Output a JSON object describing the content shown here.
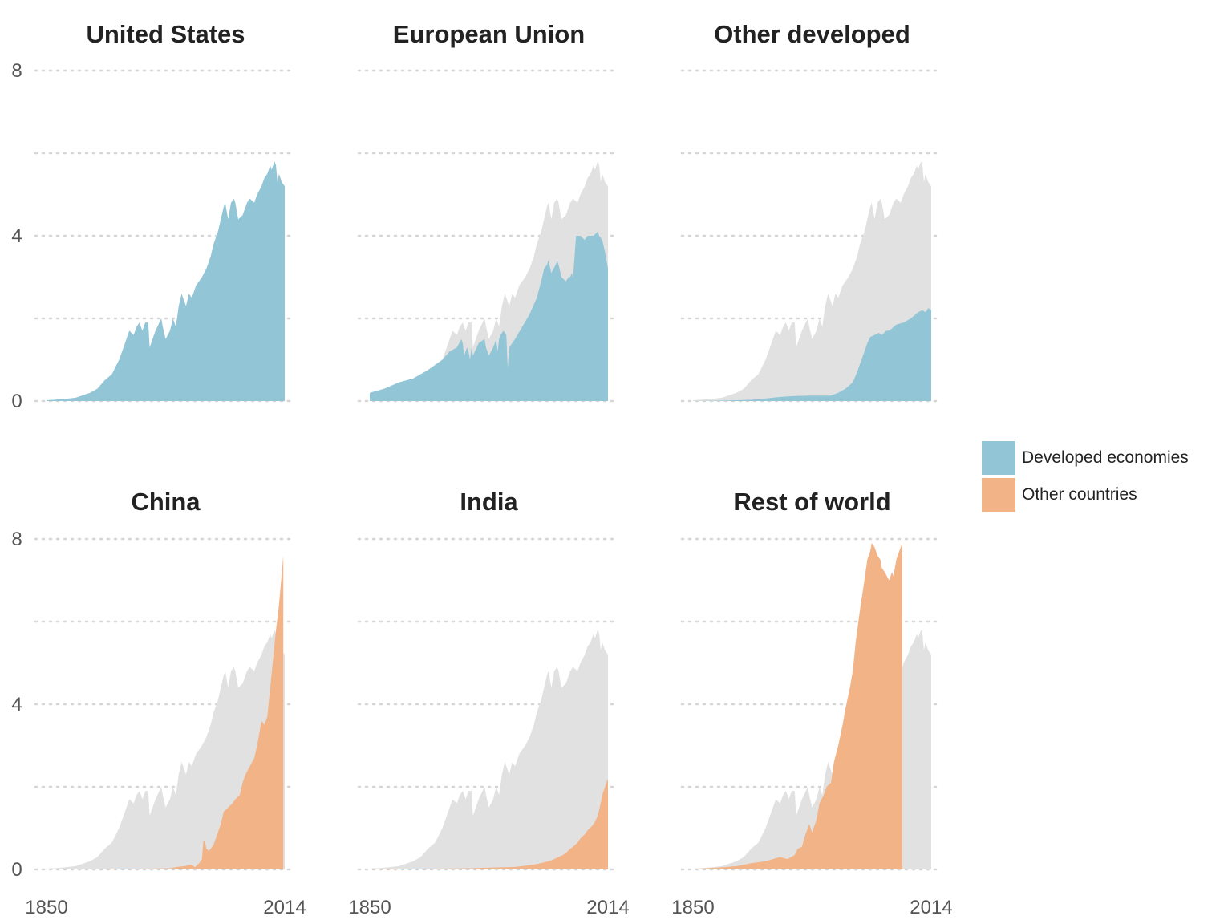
{
  "chart_data": {
    "type": "area",
    "x_range": [
      1850,
      2014
    ],
    "y_range": [
      0,
      8
    ],
    "y_ticks": [
      "0",
      "4",
      "8"
    ],
    "x_ticks": [
      "1850",
      "2014"
    ],
    "grid": "dotted horizontal",
    "legend_placement": "right",
    "legend": [
      {
        "label": "Developed economies",
        "color": "#92c5d5"
      },
      {
        "label": "Other countries",
        "color": "#f2b387"
      }
    ],
    "background_series_color": "#e1e1e1",
    "background_series": {
      "x": [
        1850,
        1860,
        1870,
        1880,
        1885,
        1890,
        1895,
        1900,
        1903,
        1905,
        1907,
        1910,
        1912,
        1914,
        1916,
        1918,
        1920,
        1921,
        1923,
        1925,
        1929,
        1930,
        1932,
        1935,
        1937,
        1939,
        1941,
        1943,
        1945,
        1946,
        1948,
        1950,
        1953,
        1955,
        1957,
        1960,
        1963,
        1965,
        1968,
        1970,
        1972,
        1973,
        1975,
        1977,
        1979,
        1980,
        1982,
        1985,
        1988,
        1990,
        1993,
        1995,
        1998,
        2000,
        2002,
        2004,
        2005,
        2007,
        2008,
        2009,
        2010,
        2012,
        2014
      ],
      "values": [
        0.02,
        0.04,
        0.08,
        0.2,
        0.3,
        0.5,
        0.65,
        1.0,
        1.3,
        1.5,
        1.7,
        1.6,
        1.8,
        1.9,
        1.7,
        1.9,
        1.9,
        1.3,
        1.5,
        1.7,
        2.0,
        1.8,
        1.5,
        1.7,
        2.0,
        1.8,
        2.3,
        2.6,
        2.4,
        2.3,
        2.6,
        2.5,
        2.8,
        2.9,
        3.0,
        3.2,
        3.5,
        3.8,
        4.1,
        4.4,
        4.7,
        4.8,
        4.4,
        4.8,
        4.9,
        4.8,
        4.4,
        4.5,
        4.8,
        4.9,
        4.8,
        5.0,
        5.2,
        5.4,
        5.5,
        5.7,
        5.6,
        5.8,
        5.7,
        5.3,
        5.5,
        5.3,
        5.2
      ]
    },
    "panels": [
      {
        "title": "United States",
        "group": "Developed economies",
        "x": [
          1850,
          1860,
          1870,
          1880,
          1885,
          1890,
          1895,
          1900,
          1903,
          1905,
          1907,
          1910,
          1912,
          1914,
          1916,
          1918,
          1920,
          1921,
          1923,
          1925,
          1929,
          1930,
          1932,
          1935,
          1937,
          1939,
          1941,
          1943,
          1945,
          1946,
          1948,
          1950,
          1953,
          1955,
          1957,
          1960,
          1963,
          1965,
          1968,
          1970,
          1972,
          1973,
          1975,
          1977,
          1979,
          1980,
          1982,
          1985,
          1988,
          1990,
          1993,
          1995,
          1998,
          2000,
          2002,
          2004,
          2005,
          2007,
          2008,
          2009,
          2010,
          2012,
          2014
        ],
        "values": [
          0.02,
          0.04,
          0.08,
          0.2,
          0.3,
          0.5,
          0.65,
          1.0,
          1.3,
          1.5,
          1.7,
          1.6,
          1.8,
          1.9,
          1.7,
          1.9,
          1.9,
          1.3,
          1.5,
          1.7,
          2.0,
          1.8,
          1.5,
          1.7,
          2.0,
          1.8,
          2.3,
          2.6,
          2.4,
          2.3,
          2.6,
          2.5,
          2.8,
          2.9,
          3.0,
          3.2,
          3.5,
          3.8,
          4.1,
          4.4,
          4.7,
          4.8,
          4.4,
          4.8,
          4.9,
          4.8,
          4.4,
          4.5,
          4.8,
          4.9,
          4.8,
          5.0,
          5.2,
          5.4,
          5.5,
          5.7,
          5.6,
          5.8,
          5.7,
          5.3,
          5.5,
          5.3,
          5.2
        ]
      },
      {
        "title": "European Union",
        "group": "Developed economies",
        "x": [
          1850,
          1860,
          1870,
          1880,
          1890,
          1900,
          1905,
          1910,
          1913,
          1914,
          1915,
          1917,
          1918,
          1919,
          1920,
          1921,
          1925,
          1929,
          1930,
          1932,
          1935,
          1937,
          1938,
          1939,
          1940,
          1942,
          1944,
          1945,
          1946,
          1948,
          1950,
          1955,
          1960,
          1965,
          1968,
          1970,
          1972,
          1973,
          1975,
          1978,
          1979,
          1980,
          1982,
          1985,
          1987,
          1988,
          1989,
          1990,
          1992,
          1995,
          1998,
          2000,
          2004,
          2007,
          2008,
          2010,
          2012,
          2014
        ],
        "values": [
          0.2,
          0.3,
          0.45,
          0.55,
          0.75,
          1.0,
          1.2,
          1.3,
          1.5,
          1.4,
          1.1,
          1.3,
          1.2,
          1.0,
          1.3,
          1.1,
          1.4,
          1.5,
          1.3,
          1.1,
          1.3,
          1.5,
          1.2,
          1.5,
          1.6,
          1.7,
          1.6,
          0.8,
          1.3,
          1.4,
          1.5,
          1.8,
          2.1,
          2.5,
          2.9,
          3.2,
          3.3,
          3.4,
          3.1,
          3.3,
          3.4,
          3.3,
          3.0,
          2.9,
          3.0,
          3.0,
          3.1,
          3.0,
          4.0,
          4.0,
          3.9,
          4.0,
          4.0,
          4.1,
          4.0,
          3.9,
          3.6,
          3.2
        ]
      },
      {
        "title": "Other developed",
        "group": "Developed economies",
        "x": [
          1850,
          1870,
          1890,
          1900,
          1910,
          1920,
          1930,
          1940,
          1945,
          1950,
          1955,
          1960,
          1963,
          1965,
          1967,
          1970,
          1972,
          1975,
          1978,
          1980,
          1983,
          1985,
          1990,
          1995,
          2000,
          2005,
          2008,
          2010,
          2012,
          2014
        ],
        "values": [
          0.0,
          0.01,
          0.03,
          0.06,
          0.1,
          0.12,
          0.13,
          0.13,
          0.13,
          0.2,
          0.3,
          0.45,
          0.7,
          0.9,
          1.1,
          1.4,
          1.55,
          1.6,
          1.65,
          1.6,
          1.7,
          1.7,
          1.85,
          1.9,
          2.0,
          2.15,
          2.2,
          2.15,
          2.25,
          2.2
        ]
      },
      {
        "title": "China",
        "group": "Other countries",
        "x": [
          1850,
          1890,
          1900,
          1920,
          1935,
          1937,
          1940,
          1945,
          1950,
          1952,
          1955,
          1957,
          1958,
          1959,
          1960,
          1962,
          1965,
          1968,
          1970,
          1972,
          1975,
          1978,
          1980,
          1983,
          1985,
          1987,
          1990,
          1993,
          1995,
          1997,
          1998,
          2000,
          2002,
          2004,
          2006,
          2008,
          2010,
          2012,
          2013
        ],
        "values": [
          0.0,
          0.0,
          0.01,
          0.02,
          0.03,
          0.04,
          0.06,
          0.08,
          0.12,
          0.05,
          0.15,
          0.25,
          0.7,
          0.7,
          0.5,
          0.45,
          0.6,
          0.9,
          1.1,
          1.4,
          1.5,
          1.6,
          1.7,
          1.8,
          2.1,
          2.3,
          2.5,
          2.7,
          3.0,
          3.4,
          3.6,
          3.5,
          3.7,
          4.4,
          5.1,
          5.8,
          6.4,
          7.2,
          7.6
        ]
      },
      {
        "title": "India",
        "group": "Other countries",
        "x": [
          1850,
          1880,
          1900,
          1920,
          1940,
          1950,
          1960,
          1965,
          1970,
          1975,
          1980,
          1983,
          1985,
          1988,
          1990,
          1993,
          1995,
          1998,
          2000,
          2003,
          2005,
          2007,
          2008,
          2009,
          2010,
          2012,
          2014
        ],
        "values": [
          0.0,
          0.01,
          0.02,
          0.03,
          0.05,
          0.06,
          0.1,
          0.13,
          0.17,
          0.22,
          0.3,
          0.35,
          0.4,
          0.5,
          0.55,
          0.65,
          0.75,
          0.85,
          0.95,
          1.05,
          1.15,
          1.3,
          1.45,
          1.6,
          1.8,
          2.0,
          2.2
        ]
      },
      {
        "title": "Rest of world",
        "group": "Other countries",
        "x": [
          1850,
          1860,
          1870,
          1880,
          1890,
          1900,
          1905,
          1910,
          1915,
          1920,
          1922,
          1925,
          1927,
          1929,
          1930,
          1932,
          1935,
          1937,
          1940,
          1942,
          1945,
          1947,
          1950,
          1953,
          1955,
          1958,
          1960,
          1962,
          1965,
          1968,
          1970,
          1972,
          1973,
          1975,
          1977,
          1979,
          1980,
          1982,
          1985,
          1987,
          1988,
          1990,
          1993,
          1994
        ],
        "values": [
          0.01,
          0.03,
          0.05,
          0.08,
          0.15,
          0.2,
          0.25,
          0.3,
          0.25,
          0.35,
          0.5,
          0.55,
          0.8,
          1.0,
          1.1,
          0.9,
          1.2,
          1.6,
          1.8,
          2.0,
          2.1,
          2.6,
          3.0,
          3.5,
          3.9,
          4.4,
          4.8,
          5.5,
          6.3,
          7.0,
          7.5,
          7.7,
          7.9,
          7.8,
          7.6,
          7.5,
          7.3,
          7.2,
          7.0,
          7.2,
          7.1,
          7.5,
          7.8,
          7.9
        ]
      }
    ]
  }
}
